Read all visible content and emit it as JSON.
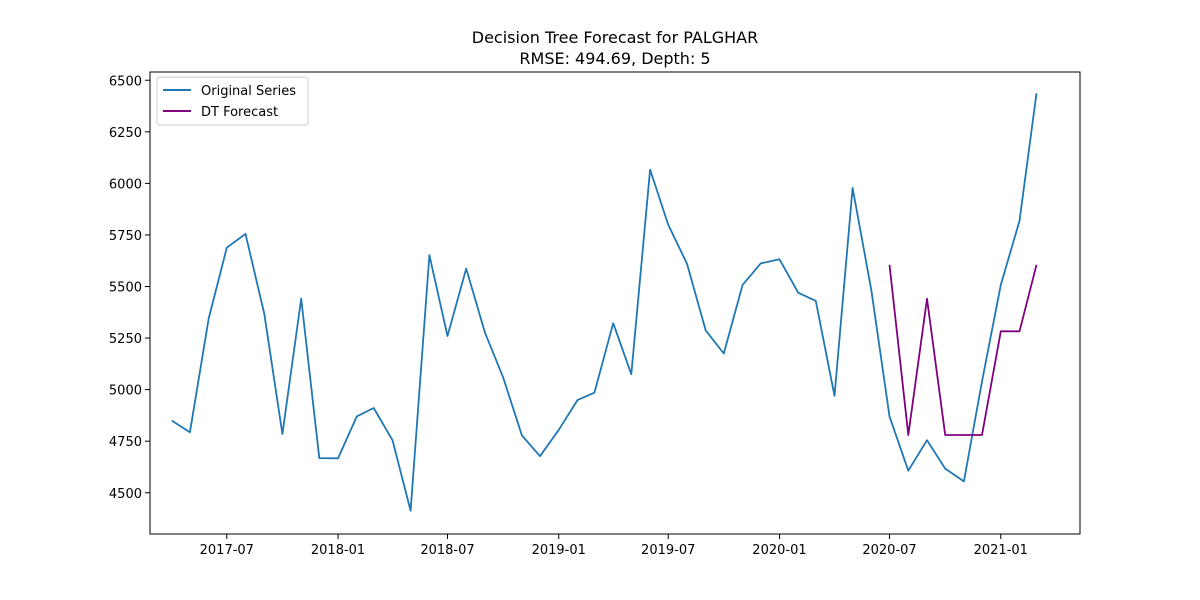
{
  "chart_data": {
    "type": "line",
    "title": "Decision Tree Forecast for PALGHAR",
    "subtitle": "RMSE: 494.69, Depth: 5",
    "xlabel": "",
    "ylabel": "",
    "x_ticks": [
      "2017-07",
      "2018-01",
      "2018-07",
      "2019-01",
      "2019-07",
      "2020-01",
      "2020-07",
      "2021-01"
    ],
    "y_ticks": [
      4500,
      4750,
      5000,
      5250,
      5500,
      5750,
      6000,
      6250,
      6500
    ],
    "xlim": [
      "2017-02-24",
      "2021-05-12"
    ],
    "ylim": [
      4300,
      6540
    ],
    "grid": false,
    "legend_position": "top-left",
    "series": [
      {
        "name": "Original Series",
        "color": "#1f77b4",
        "x": [
          "2017-04-01",
          "2017-05-01",
          "2017-06-01",
          "2017-07-01",
          "2017-08-01",
          "2017-09-01",
          "2017-10-01",
          "2017-11-01",
          "2017-12-01",
          "2018-01-01",
          "2018-02-01",
          "2018-03-01",
          "2018-04-01",
          "2018-05-01",
          "2018-06-01",
          "2018-07-01",
          "2018-08-01",
          "2018-09-01",
          "2018-10-01",
          "2018-11-01",
          "2018-12-01",
          "2019-01-01",
          "2019-02-01",
          "2019-03-01",
          "2019-04-01",
          "2019-05-01",
          "2019-06-01",
          "2019-07-01",
          "2019-08-01",
          "2019-09-01",
          "2019-10-01",
          "2019-11-01",
          "2019-12-01",
          "2020-01-01",
          "2020-02-01",
          "2020-03-01",
          "2020-04-01",
          "2020-05-01",
          "2020-06-01",
          "2020-07-01",
          "2020-08-01",
          "2020-09-01",
          "2020-10-01",
          "2020-11-01",
          "2020-12-01",
          "2021-01-01",
          "2021-02-01",
          "2021-03-01"
        ],
        "values": [
          4850,
          4793,
          5345,
          5688,
          5755,
          5367,
          4785,
          5441,
          4668,
          4667,
          4870,
          4911,
          4755,
          4413,
          5652,
          5260,
          5587,
          5276,
          5060,
          4778,
          4677,
          4805,
          4949,
          4985,
          5322,
          5075,
          6067,
          5800,
          5610,
          5287,
          5175,
          5508,
          5612,
          5632,
          5470,
          5430,
          4970,
          5978,
          5480,
          4870,
          4607,
          4755,
          4617,
          4555,
          5040,
          5508,
          5818,
          6437
        ]
      },
      {
        "name": "DT Forecast",
        "color": "#800080",
        "x": [
          "2020-07-01",
          "2020-08-01",
          "2020-09-01",
          "2020-10-01",
          "2020-11-01",
          "2020-12-01",
          "2021-01-01",
          "2021-02-01",
          "2021-03-01"
        ],
        "values": [
          5605,
          4780,
          5441,
          4780,
          4780,
          4780,
          5283,
          5283,
          5605
        ]
      }
    ]
  }
}
